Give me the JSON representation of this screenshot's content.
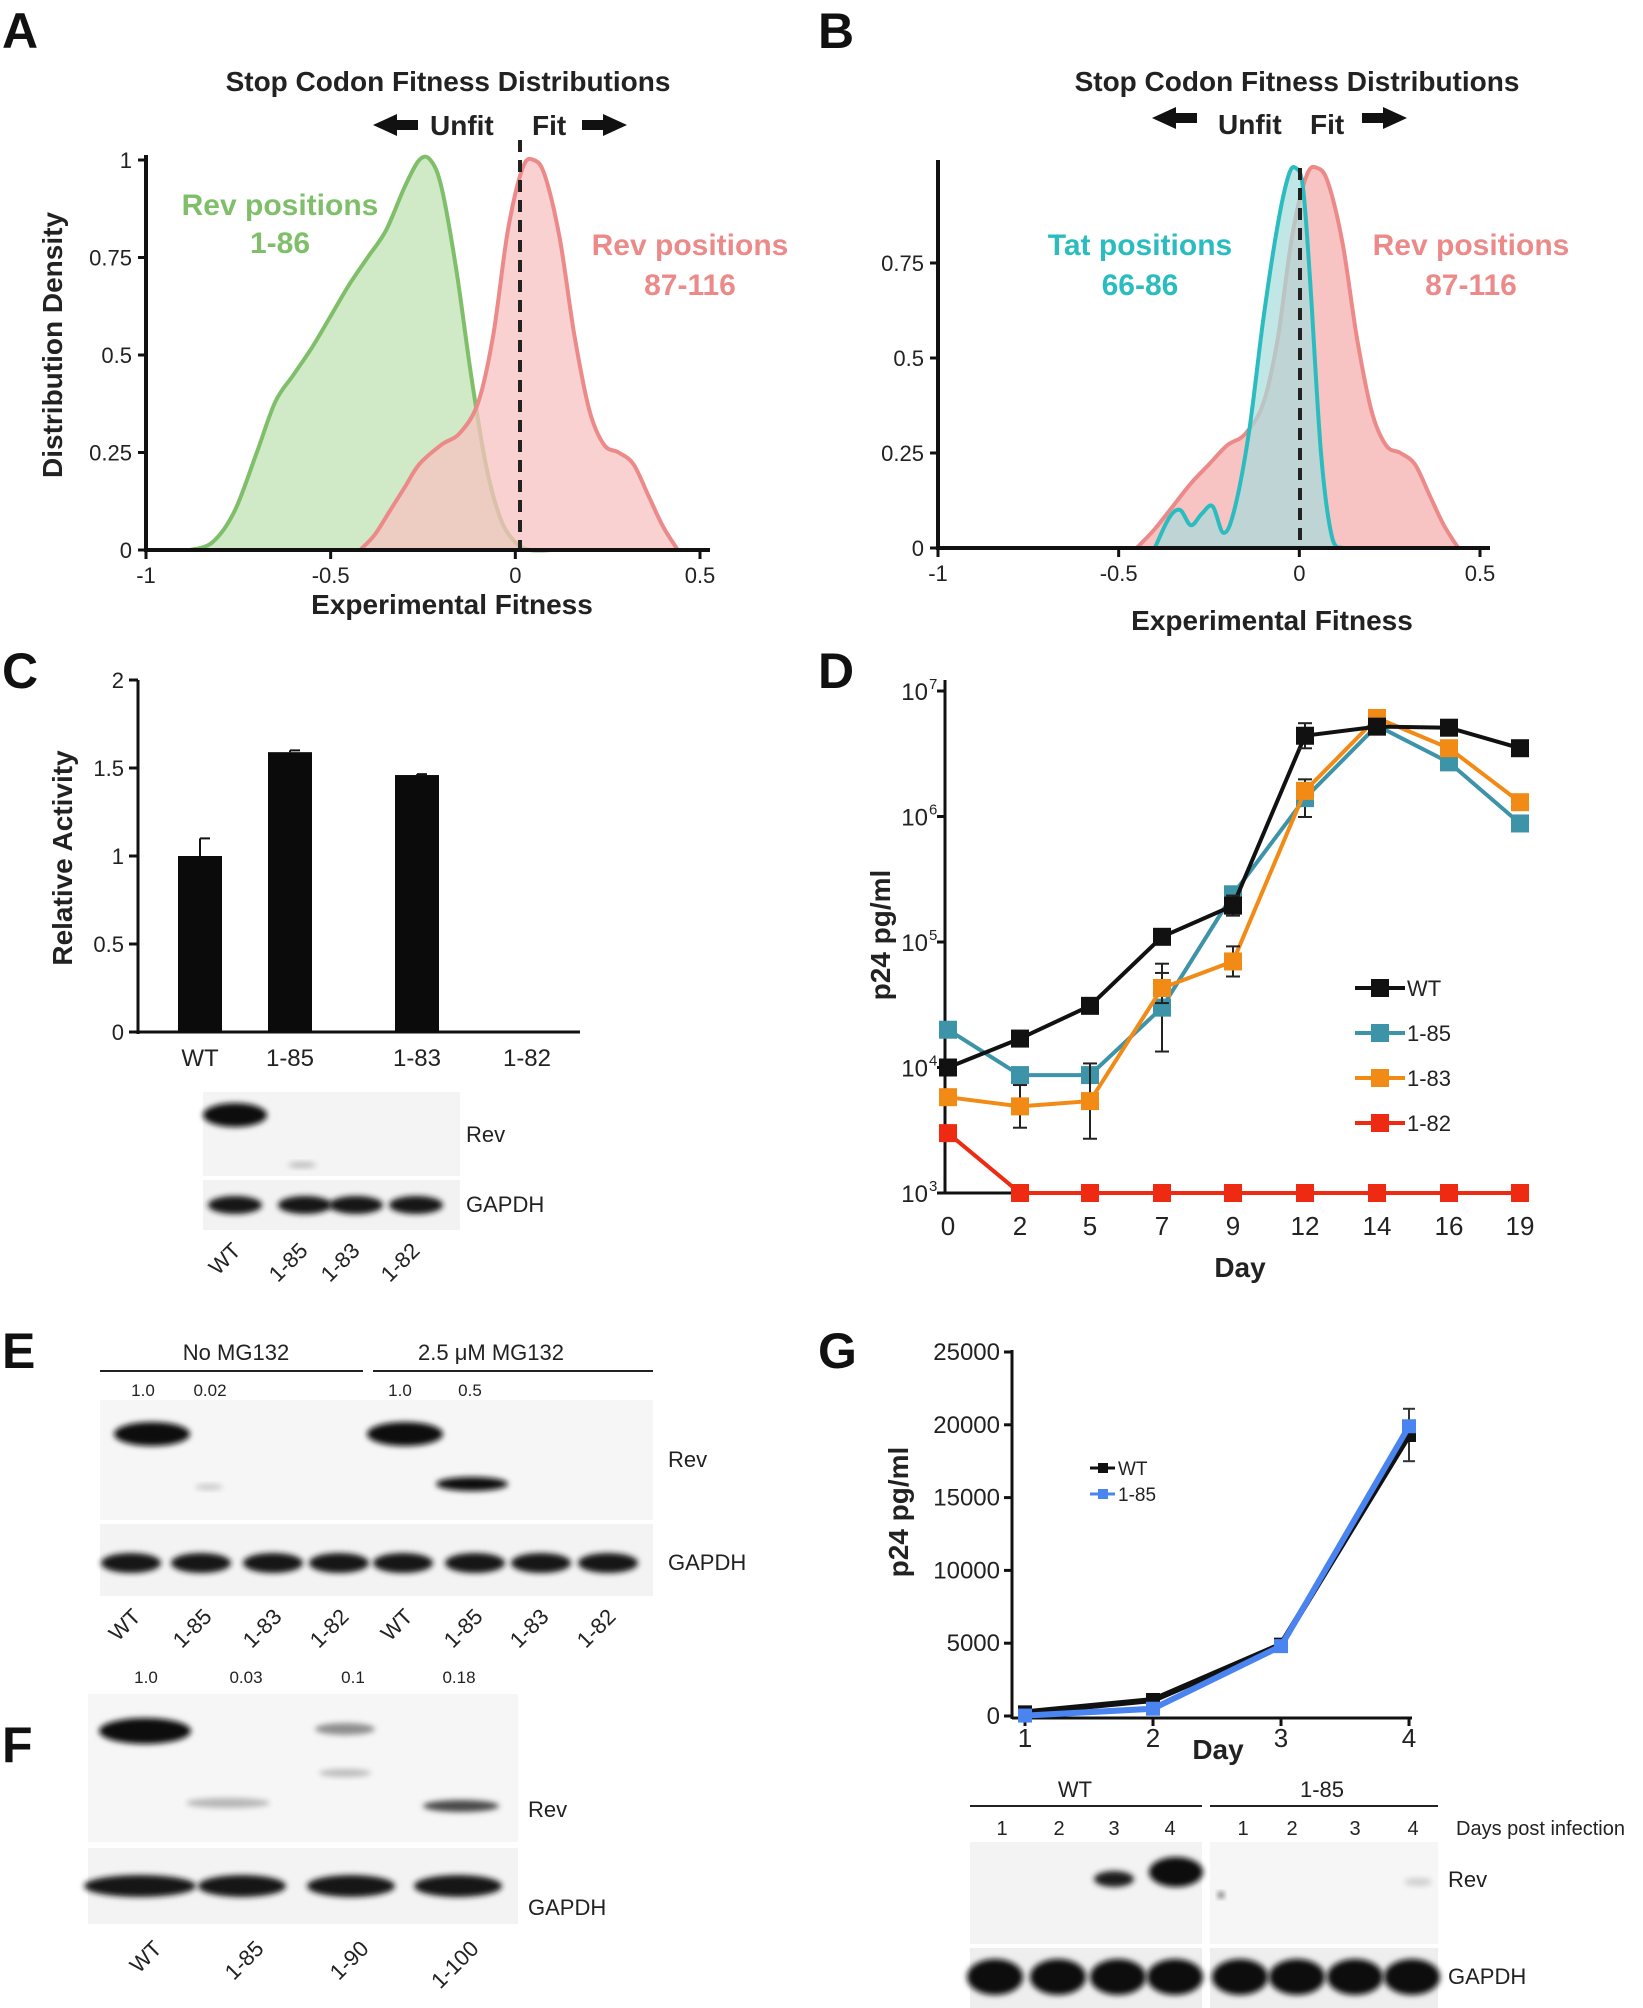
{
  "panel_letters": [
    "A",
    "B",
    "C",
    "D",
    "E",
    "F",
    "G"
  ],
  "colors": {
    "green": "#7fbf6a",
    "green_fill": "#cde8c4",
    "salmon": "#ec8a8a",
    "salmon_fill": "#f7c1c0",
    "teal": "#2bbcc0",
    "teal_fill": "#a7dcdc",
    "wt": "#111111",
    "r185": "#3d93a8",
    "r183": "#f28a16",
    "r182": "#ee2a12",
    "g185": "#4a84f0"
  },
  "chart_data": [
    {
      "id": "A",
      "type": "area",
      "title": "Stop Codon Fitness Distributions",
      "xlabel": "Experimental Fitness",
      "ylabel": "Distribution Density",
      "xlim": [
        -1,
        0.5
      ],
      "ylim": [
        0,
        1
      ],
      "xticks": [
        "-1",
        "-0.5",
        "0",
        "0.5"
      ],
      "yticks": [
        "0",
        "0.25",
        "0.5",
        "0.75",
        "1"
      ],
      "arrow_left": "Unfit",
      "arrow_right": "Fit",
      "series": [
        {
          "name": "Rev positions 1-86",
          "label_lines": [
            "Rev positions",
            "1-86"
          ],
          "color": "green",
          "x": [
            -0.88,
            -0.82,
            -0.76,
            -0.7,
            -0.65,
            -0.6,
            -0.55,
            -0.5,
            -0.45,
            -0.4,
            -0.35,
            -0.3,
            -0.26,
            -0.23,
            -0.2,
            -0.16,
            -0.12,
            -0.08,
            -0.04,
            0,
            0.04,
            0.1
          ],
          "y": [
            0,
            0.02,
            0.1,
            0.25,
            0.38,
            0.45,
            0.52,
            0.6,
            0.68,
            0.75,
            0.82,
            0.93,
            1.0,
            1.0,
            0.93,
            0.72,
            0.45,
            0.22,
            0.08,
            0.02,
            0.0,
            0
          ]
        },
        {
          "name": "Rev positions 87-116",
          "label_lines": [
            "Rev positions",
            "87-116"
          ],
          "color": "salmon",
          "x": [
            -0.42,
            -0.38,
            -0.34,
            -0.3,
            -0.26,
            -0.2,
            -0.15,
            -0.1,
            -0.06,
            -0.02,
            0.02,
            0.05,
            0.08,
            0.12,
            0.16,
            0.2,
            0.24,
            0.28,
            0.32,
            0.36,
            0.4,
            0.44
          ],
          "y": [
            0,
            0.04,
            0.1,
            0.16,
            0.22,
            0.27,
            0.3,
            0.38,
            0.55,
            0.82,
            0.98,
            1.0,
            0.96,
            0.8,
            0.55,
            0.36,
            0.27,
            0.25,
            0.22,
            0.14,
            0.06,
            0
          ]
        }
      ],
      "vline_x": 0
    },
    {
      "id": "B",
      "type": "area",
      "title": "Stop Codon Fitness Distributions",
      "xlabel": "Experimental Fitness",
      "xlim": [
        -1,
        0.5
      ],
      "ylim": [
        0,
        1
      ],
      "xticks": [
        "-1",
        "-0.5",
        "0",
        "0.5"
      ],
      "yticks": [
        "0",
        "0.25",
        "0.5",
        "0.75"
      ],
      "arrow_left": "Unfit",
      "arrow_right": "Fit",
      "series": [
        {
          "name": "Rev positions 87-116",
          "label_lines": [
            "Rev positions",
            "87-116"
          ],
          "color": "salmon",
          "x": [
            -0.45,
            -0.4,
            -0.35,
            -0.3,
            -0.25,
            -0.2,
            -0.15,
            -0.1,
            -0.06,
            -0.02,
            0.02,
            0.05,
            0.08,
            0.12,
            0.16,
            0.2,
            0.24,
            0.28,
            0.32,
            0.36,
            0.4,
            0.44
          ],
          "y": [
            0,
            0.05,
            0.11,
            0.17,
            0.22,
            0.27,
            0.3,
            0.38,
            0.55,
            0.82,
            0.98,
            1.0,
            0.96,
            0.8,
            0.55,
            0.36,
            0.27,
            0.25,
            0.22,
            0.14,
            0.06,
            0
          ]
        },
        {
          "name": "Tat positions 66-86",
          "label_lines": [
            "Tat positions",
            "66-86"
          ],
          "color": "teal",
          "x": [
            -0.4,
            -0.36,
            -0.33,
            -0.3,
            -0.27,
            -0.24,
            -0.21,
            -0.18,
            -0.14,
            -0.1,
            -0.06,
            -0.03,
            -0.01,
            0.01,
            0.03,
            0.06,
            0.09,
            0.12
          ],
          "y": [
            0,
            0.08,
            0.1,
            0.06,
            0.09,
            0.11,
            0.04,
            0.1,
            0.3,
            0.6,
            0.85,
            0.98,
            1.0,
            0.95,
            0.7,
            0.25,
            0.03,
            0
          ]
        }
      ],
      "vline_x": 0
    },
    {
      "id": "C",
      "type": "bar",
      "ylabel": "Relative Activity",
      "categories": [
        "WT",
        "1-85",
        "1-83",
        "1-82"
      ],
      "values": [
        1.0,
        1.59,
        1.46,
        0.0
      ],
      "errors": [
        0.1,
        0.01,
        0.005,
        0.0
      ],
      "ylim": [
        0,
        2
      ],
      "yticks": [
        "0",
        "0.5",
        "1",
        "1.5",
        "2"
      ],
      "ytick_values": [
        0,
        0.5,
        1,
        1.5,
        2
      ]
    },
    {
      "id": "D",
      "type": "line",
      "xlabel": "Day",
      "ylabel": "p24 pg/ml",
      "yscale": "log",
      "ylim": [
        1000,
        10000000
      ],
      "ytick_bases": [
        "10",
        "10",
        "10",
        "10",
        "10"
      ],
      "ytick_exps": [
        "3",
        "4",
        "5",
        "6",
        "7"
      ],
      "categories": [
        "0",
        "2",
        "5",
        "7",
        "9",
        "12",
        "14",
        "16",
        "19"
      ],
      "series": [
        {
          "name": "WT",
          "color": "wt",
          "values": [
            10000,
            17000,
            31000,
            110000,
            195000,
            4400000,
            5200000,
            5100000,
            3500000
          ],
          "err": [
            0.06,
            0,
            0,
            0.05,
            0.08,
            0.1,
            0.05,
            0,
            0
          ]
        },
        {
          "name": "1-85",
          "color": "r185",
          "values": [
            20000,
            8700,
            8700,
            30000,
            240000,
            1400000,
            5300000,
            2700000,
            880000
          ],
          "err": [
            0,
            0,
            0,
            0.35,
            0,
            0.15,
            0,
            0.06,
            0
          ]
        },
        {
          "name": "1-83",
          "color": "r183",
          "values": [
            5800,
            4900,
            5400,
            43000,
            70000,
            1600000,
            6100000,
            3500000,
            1300000
          ],
          "err": [
            0,
            0.17,
            0.3,
            0.12,
            0.12,
            0,
            0,
            0,
            0.05
          ]
        },
        {
          "name": "1-82",
          "color": "r182",
          "values": [
            3000,
            1000,
            1000,
            1000,
            1000,
            1000,
            1000,
            1000,
            1000
          ],
          "err": [
            0,
            0,
            0,
            0,
            0,
            0,
            0,
            0,
            0
          ]
        }
      ]
    },
    {
      "id": "G",
      "type": "line",
      "xlabel": "Day",
      "ylabel": "p24 pg/ml",
      "ylim": [
        0,
        25000
      ],
      "yticks": [
        "0",
        "5000",
        "10000",
        "15000",
        "20000",
        "25000"
      ],
      "ytick_values": [
        0,
        5000,
        10000,
        15000,
        20000,
        25000
      ],
      "categories": [
        "1",
        "2",
        "3",
        "4"
      ],
      "series": [
        {
          "name": "WT",
          "color": "wt",
          "values": [
            250,
            1100,
            4900,
            19300
          ],
          "err": [
            0,
            0,
            0,
            1800
          ]
        },
        {
          "name": "1-85",
          "color": "g185",
          "values": [
            30,
            500,
            4800,
            19900
          ],
          "err": [
            0,
            0,
            350,
            0
          ]
        }
      ]
    }
  ],
  "blots": {
    "C": {
      "lanes": [
        "WT",
        "1-85",
        "1-83",
        "1-82"
      ],
      "rows": [
        "Rev",
        "GAPDH"
      ]
    },
    "E": {
      "group_left": "No MG132",
      "group_right": "2.5 μM MG132",
      "quant": [
        "1.0",
        "0.02",
        "1.0",
        "0.5"
      ],
      "lanes": [
        "WT",
        "1-85",
        "1-83",
        "1-82",
        "WT",
        "1-85",
        "1-83",
        "1-82"
      ],
      "rows": [
        "Rev",
        "GAPDH"
      ]
    },
    "F": {
      "quant": [
        "1.0",
        "0.03",
        "0.1",
        "0.18"
      ],
      "lanes": [
        "WT",
        "1-85",
        "1-90",
        "1-100"
      ],
      "rows": [
        "Rev",
        "GAPDH"
      ]
    },
    "G": {
      "group_left": "WT",
      "group_right": "1-85",
      "days_label": "Days post infection",
      "days": [
        "1",
        "2",
        "3",
        "4",
        "1",
        "2",
        "3",
        "4"
      ],
      "rows": [
        "Rev",
        "GAPDH"
      ]
    }
  }
}
